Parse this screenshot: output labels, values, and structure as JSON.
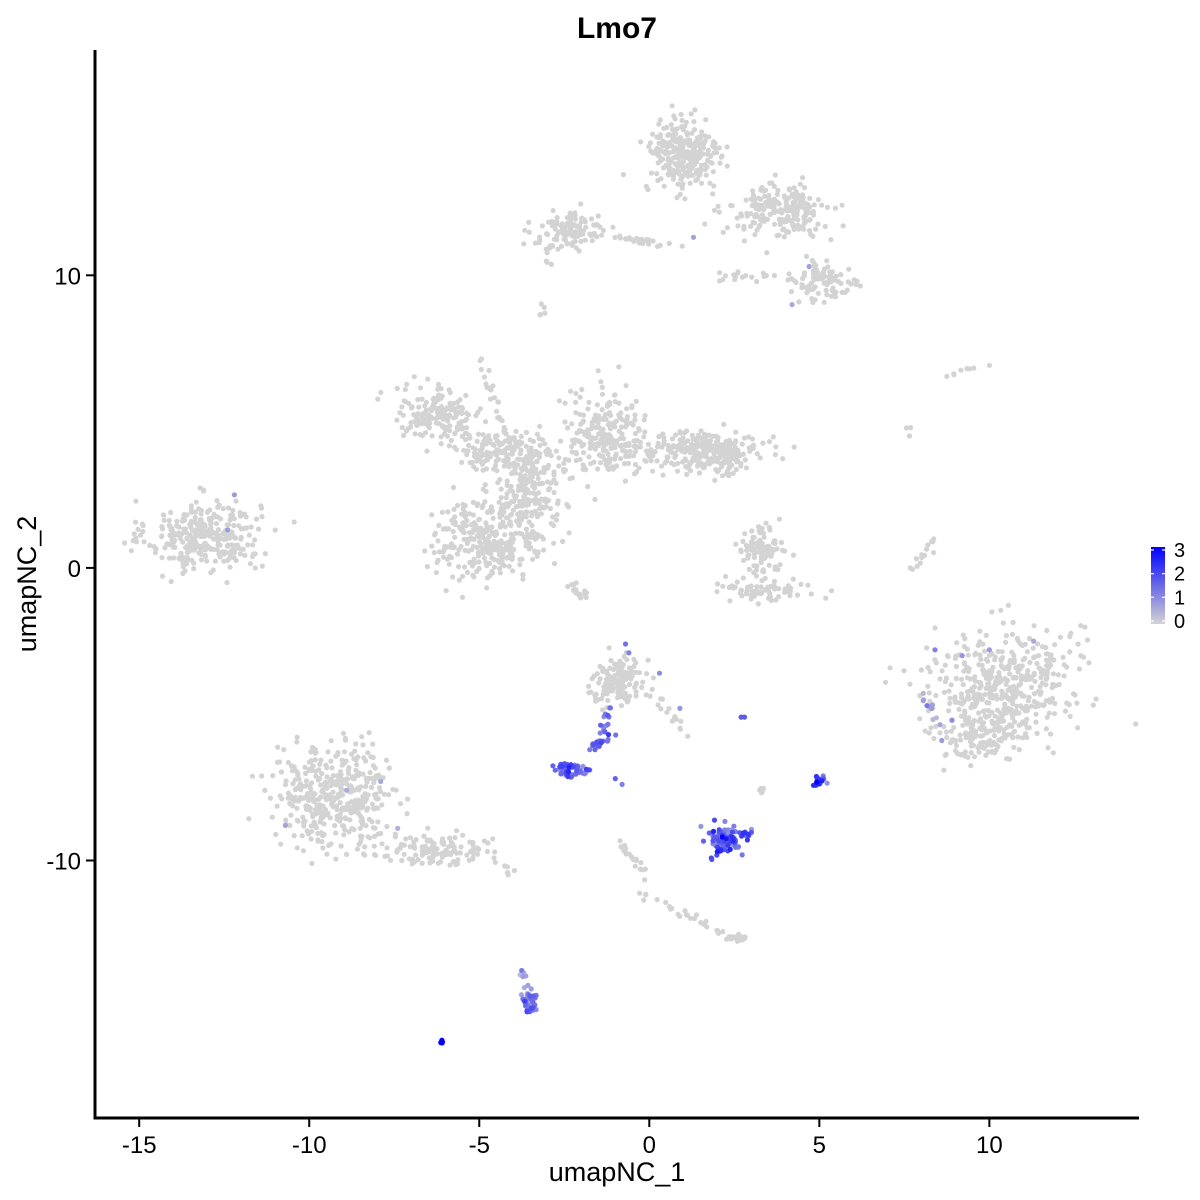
{
  "chart_data": {
    "type": "scatter",
    "title": "Lmo7",
    "xlabel": "umapNC_1",
    "ylabel": "umapNC_2",
    "xlim": [
      -16.3,
      14.4
    ],
    "ylim": [
      -18.8,
      17.7
    ],
    "x_ticks": [
      -15,
      -10,
      -5,
      0,
      5,
      10
    ],
    "x_tick_labels": [
      "-15",
      "-10",
      "-5",
      "0",
      "5",
      "10"
    ],
    "y_ticks": [
      -10,
      0,
      10
    ],
    "y_tick_labels": [
      "-10",
      "0",
      "10"
    ],
    "grid": false,
    "legend_position": "right",
    "color_scale": {
      "low_color": "#d3d3d3",
      "high_color": "#0000ff",
      "min": 0,
      "max": 3,
      "ticks": [
        0,
        1,
        2,
        3
      ],
      "tick_labels": [
        "0",
        "1",
        "2",
        "3"
      ]
    },
    "clusters": [
      {
        "cx": -13.1,
        "cy": 1.1,
        "rx": 1.5,
        "ry": 1.1,
        "n": 320,
        "expr": 0
      },
      {
        "cx": -6.2,
        "cy": 5.3,
        "rx": 1.2,
        "ry": 0.8,
        "n": 160,
        "expr": 0
      },
      {
        "cx": -4.3,
        "cy": 4.0,
        "rx": 1.4,
        "ry": 0.6,
        "n": 170,
        "expr": 0
      },
      {
        "cx": -4.7,
        "cy": 1.0,
        "rx": 1.5,
        "ry": 1.3,
        "n": 320,
        "expr": 0
      },
      {
        "cx": -3.5,
        "cy": 2.6,
        "rx": 0.7,
        "ry": 1.4,
        "n": 170,
        "expr": 0
      },
      {
        "cx": -1.3,
        "cy": 4.5,
        "rx": 1.1,
        "ry": 1.3,
        "n": 230,
        "expr": 0
      },
      {
        "cx": 1.4,
        "cy": 4.0,
        "rx": 1.7,
        "ry": 0.6,
        "n": 220,
        "expr": 0
      },
      {
        "cx": 2.3,
        "cy": 3.8,
        "rx": 0.6,
        "ry": 0.6,
        "n": 80,
        "expr": 0
      },
      {
        "cx": 1.0,
        "cy": 14.1,
        "rx": 1.0,
        "ry": 1.2,
        "n": 280,
        "expr": 0
      },
      {
        "cx": 3.8,
        "cy": 12.2,
        "rx": 1.3,
        "ry": 0.8,
        "n": 210,
        "expr": 0
      },
      {
        "cx": -2.3,
        "cy": 11.5,
        "rx": 1.0,
        "ry": 0.6,
        "n": 110,
        "expr": 0
      },
      {
        "cx": 5.2,
        "cy": 9.8,
        "rx": 0.8,
        "ry": 0.6,
        "n": 90,
        "expr": 0
      },
      {
        "cx": 3.2,
        "cy": 0.6,
        "rx": 0.6,
        "ry": 0.7,
        "n": 90,
        "expr": 0
      },
      {
        "cx": 3.5,
        "cy": -0.7,
        "rx": 1.3,
        "ry": 0.4,
        "n": 70,
        "expr": 0
      },
      {
        "cx": 10.4,
        "cy": -4.0,
        "rx": 1.9,
        "ry": 1.8,
        "n": 450,
        "expr": 0
      },
      {
        "cx": 9.6,
        "cy": -5.8,
        "rx": 0.9,
        "ry": 0.8,
        "n": 110,
        "expr": 0
      },
      {
        "cx": -9.2,
        "cy": -7.8,
        "rx": 1.6,
        "ry": 1.5,
        "n": 420,
        "expr": 0
      },
      {
        "cx": -6.3,
        "cy": -9.6,
        "rx": 1.4,
        "ry": 0.5,
        "n": 120,
        "expr": 0
      },
      {
        "cx": -0.9,
        "cy": -3.8,
        "rx": 0.7,
        "ry": 0.7,
        "n": 140,
        "expr": 0
      },
      {
        "cx": -2.3,
        "cy": -6.9,
        "rx": 0.45,
        "ry": 0.25,
        "n": 55,
        "expr": 1.6
      },
      {
        "cx": 2.3,
        "cy": -9.3,
        "rx": 0.55,
        "ry": 0.45,
        "n": 90,
        "expr": 1.6
      },
      {
        "cx": 5.0,
        "cy": -7.3,
        "rx": 0.15,
        "ry": 0.2,
        "n": 22,
        "expr": 1.9
      },
      {
        "cx": -3.5,
        "cy": -14.8,
        "rx": 0.2,
        "ry": 0.45,
        "n": 35,
        "expr": 1.3
      },
      {
        "cx": -6.1,
        "cy": -16.2,
        "rx": 0.06,
        "ry": 0.05,
        "n": 8,
        "expr": 3.0
      },
      {
        "cx": 2.6,
        "cy": -12.6,
        "rx": 0.3,
        "ry": 0.15,
        "n": 18,
        "expr": 0
      },
      {
        "cx": 3.3,
        "cy": -7.6,
        "rx": 0.1,
        "ry": 0.1,
        "n": 6,
        "expr": 0
      }
    ],
    "paths": [
      {
        "x1": -1.9,
        "y1": -1.0,
        "x2": -2.4,
        "y2": -0.5,
        "n": 20,
        "expr": 0
      },
      {
        "x1": -1.1,
        "y1": -5.8,
        "x2": -1.7,
        "y2": -6.1,
        "n": 16,
        "expr": 1.5
      },
      {
        "x1": -1.6,
        "y1": -6.3,
        "x2": -1.1,
        "y2": -4.6,
        "n": 18,
        "expr": 1.3
      },
      {
        "x1": 0.3,
        "y1": -4.5,
        "x2": 1.2,
        "y2": -5.8,
        "n": 14,
        "expr": 0
      },
      {
        "x1": -0.9,
        "y1": -9.3,
        "x2": 0.2,
        "y2": -11.0,
        "n": 20,
        "expr": 0
      },
      {
        "x1": -0.2,
        "y1": -11.2,
        "x2": 2.2,
        "y2": -12.5,
        "n": 25,
        "expr": 0
      },
      {
        "x1": -3.8,
        "y1": -13.7,
        "x2": -3.6,
        "y2": -14.9,
        "n": 10,
        "expr": 0.6
      },
      {
        "x1": -5.0,
        "y1": 7.2,
        "x2": -4.2,
        "y2": 4.5,
        "n": 25,
        "expr": 0
      },
      {
        "x1": -2.9,
        "y1": 11.5,
        "x2": -3.0,
        "y2": 10.3,
        "n": 10,
        "expr": 0
      },
      {
        "x1": -3.0,
        "y1": 8.9,
        "x2": -3.2,
        "y2": 8.6,
        "n": 6,
        "expr": 0
      },
      {
        "x1": -1.5,
        "y1": 11.3,
        "x2": 1.0,
        "y2": 11.0,
        "n": 25,
        "expr": 0
      },
      {
        "x1": 2.0,
        "y1": 10.0,
        "x2": 4.0,
        "y2": 10.0,
        "n": 18,
        "expr": 0
      },
      {
        "x1": 7.7,
        "y1": -0.2,
        "x2": 8.5,
        "y2": 1.2,
        "n": 14,
        "expr": 0
      },
      {
        "x1": 7.6,
        "y1": 4.8,
        "x2": 7.7,
        "y2": 4.6,
        "n": 3,
        "expr": 0
      },
      {
        "x1": 8.6,
        "y1": 6.6,
        "x2": 9.9,
        "y2": 6.9,
        "n": 8,
        "expr": 0
      },
      {
        "x1": 8.0,
        "y1": -4.3,
        "x2": 8.5,
        "y2": -5.4,
        "n": 12,
        "expr": 0.7
      },
      {
        "x1": -4.5,
        "y1": -10.2,
        "x2": -4.0,
        "y2": -10.4,
        "n": 6,
        "expr": 0
      }
    ],
    "highlights": [
      {
        "x": -12.2,
        "y": 2.5,
        "expr": 0.8
      },
      {
        "x": -12.4,
        "y": 1.3,
        "expr": 0.8
      },
      {
        "x": -8.9,
        "y": -7.6,
        "expr": 0.6
      },
      {
        "x": -7.9,
        "y": -7.3,
        "expr": 0.6
      },
      {
        "x": -10.7,
        "y": -8.8,
        "expr": 0.7
      },
      {
        "x": -7.4,
        "y": -8.9,
        "expr": 0.5
      },
      {
        "x": -0.7,
        "y": -2.6,
        "expr": 1.4
      },
      {
        "x": -0.6,
        "y": -2.9,
        "expr": 1.2
      },
      {
        "x": 0.3,
        "y": -3.6,
        "expr": 1.0
      },
      {
        "x": 0.9,
        "y": -4.8,
        "expr": 0.9
      },
      {
        "x": 2.7,
        "y": -5.1,
        "expr": 1.7
      },
      {
        "x": 2.8,
        "y": -5.1,
        "expr": 1.7
      },
      {
        "x": -1.0,
        "y": -7.2,
        "expr": 1.6
      },
      {
        "x": -0.8,
        "y": -7.4,
        "expr": 1.2
      },
      {
        "x": 1.3,
        "y": 11.3,
        "expr": 0.7
      },
      {
        "x": 4.7,
        "y": 10.3,
        "expr": 0.7
      },
      {
        "x": 4.2,
        "y": 9.0,
        "expr": 0.6
      },
      {
        "x": 8.4,
        "y": -2.8,
        "expr": 1.2
      },
      {
        "x": 9.2,
        "y": -3.0,
        "expr": 0.9
      },
      {
        "x": 8.9,
        "y": -5.2,
        "expr": 1.0
      },
      {
        "x": 11.3,
        "y": -2.5,
        "expr": 0.6
      },
      {
        "x": 10.0,
        "y": -2.8,
        "expr": 0.8
      },
      {
        "x": 8.6,
        "y": -5.9,
        "expr": 0.8
      },
      {
        "x": 2.0,
        "y": -9.7,
        "expr": 2.6
      },
      {
        "x": 2.9,
        "y": -9.1,
        "expr": 2.2
      }
    ]
  }
}
